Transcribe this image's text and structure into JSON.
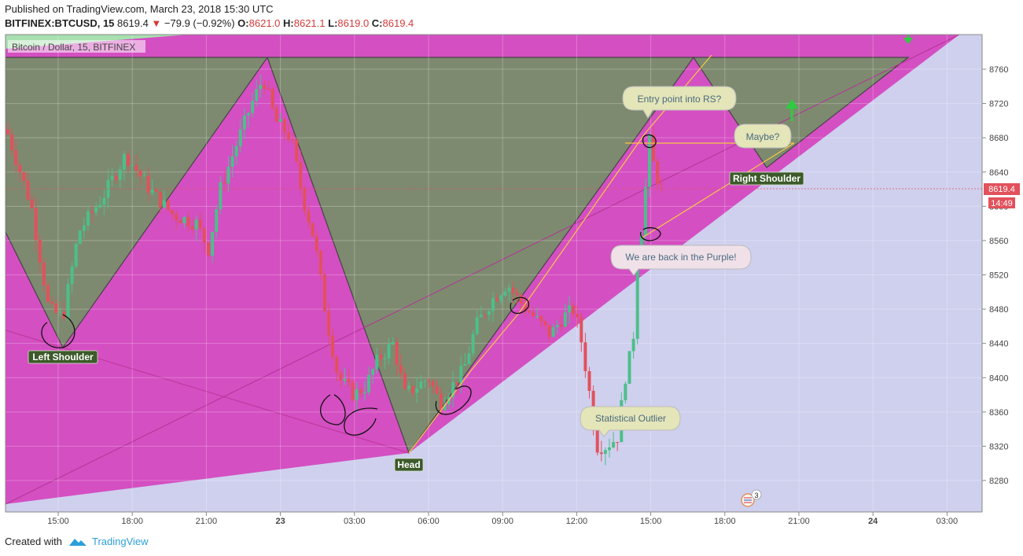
{
  "header": {
    "published": "Published on TradingView.com, March 23, 2018 15:30 UTC",
    "symbol": "BITFINEX:BTCUSD, 15",
    "last": "8619.4",
    "change_arrow": "▼",
    "change": "−79.9 (−0.92%)",
    "o_label": "O:",
    "o_val": "8621.0",
    "h_label": "H:",
    "h_val": "8621.1",
    "l_label": "L:",
    "l_val": "8619.0",
    "c_label": "C:",
    "c_val": "8619.4"
  },
  "chart": {
    "legend": "Bitcoin / Dollar, 15, BITFINEX"
  },
  "chart_data": {
    "type": "candlestick",
    "ylim": [
      8240,
      8780
    ],
    "y_ticks": [
      8280,
      8320,
      8360,
      8400,
      8440,
      8480,
      8520,
      8560,
      8600,
      8640,
      8680,
      8720,
      8760
    ],
    "x_ticks": [
      "15:00",
      "18:00",
      "21:00",
      "23",
      "03:00",
      "06:00",
      "09:00",
      "12:00",
      "15:00",
      "18:00",
      "21:00",
      "24",
      "03:00"
    ],
    "last_price": "8619.4",
    "countdown": "14:49",
    "colors": {
      "up": "#4cbf8a",
      "down": "#e2515c",
      "pattern_fill": "#d44fc2",
      "lower_fill": "#cfd0ee",
      "triangle_fill": "#7e8a6f",
      "trendline": "#f5c842"
    },
    "annotations": [
      "Left Shoulder",
      "Head",
      "Right Shoulder",
      "Entry point into RS?",
      "Maybe?",
      "We are back in the Purple!",
      "Statistical Outlier"
    ],
    "event_count": "3"
  },
  "footer": {
    "created_with": "Created with",
    "brand": "TradingView"
  }
}
